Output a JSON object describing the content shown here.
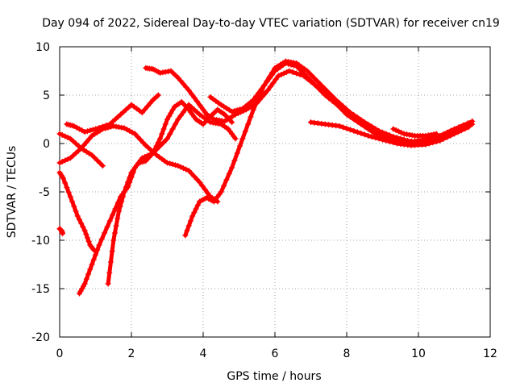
{
  "chart_data": {
    "type": "scatter",
    "title": "Day 094 of 2022, Sidereal Day-to-day VTEC variation (SDTVAR) for receiver cn19",
    "xlabel": "GPS time / hours",
    "ylabel": "SDTVAR / TECUs",
    "xlim": [
      0,
      12
    ],
    "ylim": [
      -20,
      10
    ],
    "xticks": [
      "0",
      "2",
      "4",
      "6",
      "8",
      "10",
      "12"
    ],
    "yticks": [
      "-20",
      "-15",
      "-10",
      "-5",
      "0",
      "5",
      "10"
    ],
    "grid": true,
    "marker": "plus",
    "color": "#ff0000",
    "series": [
      {
        "points": [
          [
            0.0,
            1.0
          ],
          [
            0.3,
            0.5
          ],
          [
            0.6,
            -0.5
          ],
          [
            0.9,
            -1.2
          ],
          [
            1.2,
            -2.3
          ]
        ]
      },
      {
        "points": [
          [
            0.0,
            -2.0
          ],
          [
            0.3,
            -1.5
          ],
          [
            0.6,
            -0.5
          ],
          [
            0.9,
            0.8
          ],
          [
            1.2,
            1.5
          ],
          [
            1.5,
            1.8
          ],
          [
            1.8,
            1.6
          ],
          [
            2.1,
            1.0
          ],
          [
            2.4,
            -0.2
          ],
          [
            2.7,
            -1.2
          ],
          [
            3.0,
            -2.0
          ],
          [
            3.3,
            -2.3
          ],
          [
            3.6,
            -2.8
          ],
          [
            3.9,
            -4.0
          ],
          [
            4.2,
            -5.5
          ],
          [
            4.4,
            -6.0
          ]
        ]
      },
      {
        "points": [
          [
            0.0,
            -3.0
          ],
          [
            0.1,
            -3.6
          ],
          [
            0.3,
            -5.5
          ],
          [
            0.5,
            -7.5
          ],
          [
            0.7,
            -9.0
          ],
          [
            0.85,
            -10.5
          ],
          [
            0.95,
            -11.0
          ]
        ]
      },
      {
        "points": [
          [
            0.2,
            2.0
          ],
          [
            0.4,
            1.8
          ],
          [
            0.7,
            1.2
          ],
          [
            1.0,
            1.5
          ],
          [
            1.4,
            2.0
          ],
          [
            1.7,
            3.0
          ],
          [
            2.0,
            4.0
          ],
          [
            2.3,
            3.2
          ],
          [
            2.6,
            4.5
          ],
          [
            2.75,
            5.0
          ]
        ]
      },
      {
        "points": [
          [
            0.55,
            -15.5
          ],
          [
            0.7,
            -14.5
          ],
          [
            0.9,
            -12.5
          ],
          [
            1.1,
            -10.5
          ],
          [
            1.4,
            -8.0
          ],
          [
            1.7,
            -5.5
          ],
          [
            1.9,
            -4.5
          ],
          [
            2.1,
            -2.5
          ],
          [
            2.3,
            -1.5
          ],
          [
            2.6,
            -1.0
          ],
          [
            3.0,
            0.5
          ],
          [
            3.3,
            2.5
          ],
          [
            3.6,
            4.0
          ],
          [
            3.9,
            3.0
          ],
          [
            4.2,
            2.2
          ],
          [
            4.5,
            2.0
          ],
          [
            4.7,
            1.5
          ],
          [
            4.9,
            0.5
          ]
        ]
      },
      {
        "points": [
          [
            1.35,
            -14.5
          ],
          [
            1.5,
            -10.0
          ],
          [
            1.65,
            -7.0
          ],
          [
            1.8,
            -5.0
          ],
          [
            2.0,
            -3.0
          ],
          [
            2.2,
            -2.0
          ],
          [
            2.4,
            -1.8
          ],
          [
            2.6,
            -1.0
          ],
          [
            2.8,
            0.5
          ],
          [
            3.0,
            2.5
          ],
          [
            3.2,
            3.8
          ],
          [
            3.4,
            4.3
          ],
          [
            3.6,
            3.5
          ],
          [
            3.8,
            2.5
          ],
          [
            4.0,
            2.0
          ],
          [
            4.2,
            2.8
          ],
          [
            4.4,
            3.5
          ],
          [
            4.6,
            3.0
          ],
          [
            4.8,
            2.2
          ]
        ]
      },
      {
        "points": [
          [
            2.4,
            7.8
          ],
          [
            2.6,
            7.7
          ],
          [
            2.8,
            7.3
          ],
          [
            3.1,
            7.5
          ],
          [
            3.3,
            6.8
          ],
          [
            3.6,
            5.5
          ],
          [
            3.9,
            4.0
          ],
          [
            4.1,
            3.0
          ],
          [
            4.3,
            2.5
          ],
          [
            4.6,
            2.3
          ],
          [
            4.9,
            3.0
          ],
          [
            5.2,
            3.5
          ],
          [
            5.5,
            4.2
          ],
          [
            5.8,
            5.5
          ],
          [
            6.1,
            7.0
          ],
          [
            6.4,
            7.5
          ],
          [
            6.8,
            7.0
          ],
          [
            7.2,
            5.8
          ],
          [
            7.6,
            4.5
          ],
          [
            8.0,
            3.0
          ],
          [
            8.4,
            2.0
          ],
          [
            8.8,
            1.0
          ],
          [
            9.2,
            0.4
          ],
          [
            9.6,
            0.2
          ],
          [
            10.0,
            0.2
          ],
          [
            10.4,
            0.5
          ],
          [
            10.8,
            1.0
          ],
          [
            11.2,
            1.6
          ],
          [
            11.5,
            2.0
          ]
        ]
      },
      {
        "points": [
          [
            3.5,
            -9.5
          ],
          [
            3.7,
            -7.5
          ],
          [
            3.9,
            -6.0
          ],
          [
            4.1,
            -5.6
          ],
          [
            4.3,
            -6.0
          ],
          [
            4.5,
            -5.0
          ],
          [
            4.8,
            -2.5
          ],
          [
            5.1,
            0.5
          ],
          [
            5.4,
            3.5
          ],
          [
            5.7,
            6.0
          ],
          [
            6.0,
            7.5
          ],
          [
            6.3,
            8.3
          ],
          [
            6.6,
            8.0
          ],
          [
            7.0,
            6.5
          ],
          [
            7.4,
            5.0
          ],
          [
            7.8,
            3.8
          ],
          [
            8.2,
            2.8
          ],
          [
            8.6,
            1.8
          ],
          [
            9.0,
            1.0
          ],
          [
            9.4,
            0.5
          ],
          [
            9.8,
            0.2
          ],
          [
            10.2,
            0.4
          ],
          [
            10.6,
            0.8
          ],
          [
            11.0,
            1.5
          ],
          [
            11.5,
            2.3
          ]
        ]
      },
      {
        "points": [
          [
            4.2,
            4.8
          ],
          [
            4.5,
            4.0
          ],
          [
            4.8,
            3.3
          ],
          [
            5.1,
            3.6
          ],
          [
            5.4,
            4.5
          ],
          [
            5.7,
            6.0
          ],
          [
            6.0,
            7.8
          ],
          [
            6.3,
            8.5
          ],
          [
            6.6,
            8.3
          ],
          [
            6.9,
            7.5
          ],
          [
            7.3,
            6.0
          ],
          [
            7.7,
            4.5
          ],
          [
            8.1,
            3.2
          ],
          [
            8.5,
            2.2
          ],
          [
            8.9,
            1.3
          ],
          [
            9.3,
            0.7
          ],
          [
            9.7,
            0.3
          ],
          [
            10.1,
            0.0
          ],
          [
            10.5,
            0.3
          ],
          [
            10.9,
            0.9
          ],
          [
            11.4,
            1.8
          ]
        ]
      },
      {
        "points": [
          [
            7.0,
            2.2
          ],
          [
            7.4,
            2.0
          ],
          [
            7.8,
            1.8
          ],
          [
            8.2,
            1.3
          ],
          [
            8.6,
            0.8
          ],
          [
            9.0,
            0.4
          ],
          [
            9.4,
            0.0
          ],
          [
            9.8,
            -0.2
          ],
          [
            10.2,
            -0.1
          ],
          [
            10.6,
            0.3
          ],
          [
            11.0,
            1.0
          ],
          [
            11.4,
            1.7
          ]
        ]
      },
      {
        "points": [
          [
            9.3,
            1.5
          ],
          [
            9.6,
            1.0
          ],
          [
            9.9,
            0.8
          ],
          [
            10.2,
            0.8
          ],
          [
            10.5,
            1.0
          ]
        ]
      },
      {
        "points": [
          [
            0.0,
            -8.8
          ],
          [
            0.05,
            -9.0
          ],
          [
            0.08,
            -9.3
          ]
        ]
      }
    ]
  }
}
